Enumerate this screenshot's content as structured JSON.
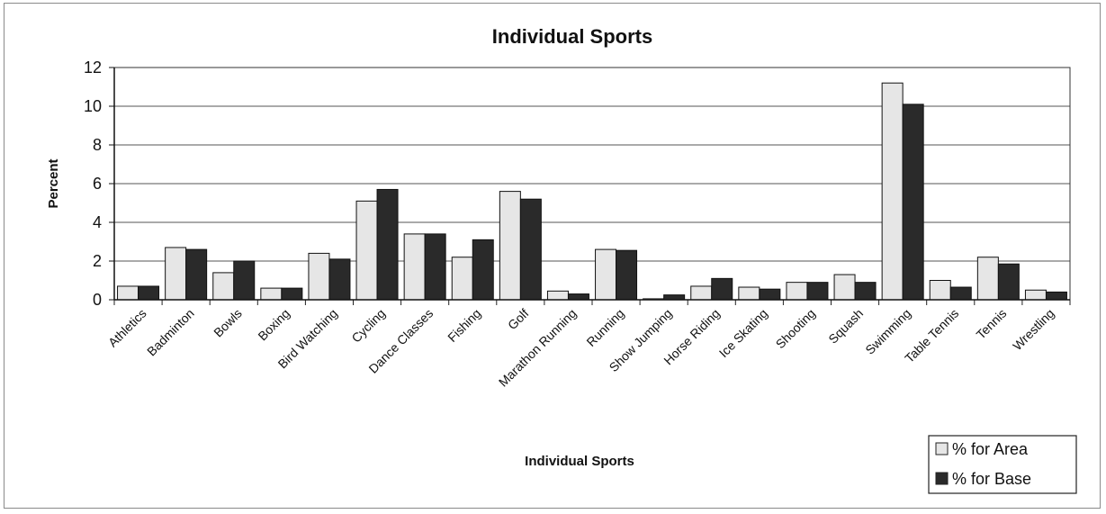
{
  "chart_data": {
    "type": "bar",
    "title": "Individual Sports",
    "xlabel": "Individual Sports",
    "ylabel": "Percent",
    "ylim": [
      0,
      12
    ],
    "yticks": [
      0,
      2,
      4,
      6,
      8,
      10,
      12
    ],
    "grid": true,
    "legend_position": "bottom-right",
    "categories": [
      "Athletics",
      "Badminton",
      "Bowls",
      "Boxing",
      "Bird Watching",
      "Cycling",
      "Dance Classes",
      "Fishing",
      "Golf",
      "Marathon Running",
      "Running",
      "Show Jumping",
      "Horse Riding",
      "Ice Skating",
      "Shooting",
      "Squash",
      "Swimming",
      "Table Tennis",
      "Tennis",
      "Wrestling"
    ],
    "series": [
      {
        "name": "% for Area",
        "color": "#e6e6e6",
        "values": [
          0.7,
          2.7,
          1.4,
          0.6,
          2.4,
          5.1,
          3.4,
          2.2,
          5.6,
          0.45,
          2.6,
          0.05,
          0.7,
          0.65,
          0.9,
          1.3,
          11.2,
          1.0,
          2.2,
          0.5
        ]
      },
      {
        "name": "% for Base",
        "color": "#2a2a2a",
        "values": [
          0.7,
          2.6,
          2.0,
          0.6,
          2.1,
          5.7,
          3.4,
          3.1,
          5.2,
          0.3,
          2.55,
          0.25,
          1.1,
          0.55,
          0.9,
          0.9,
          10.1,
          0.65,
          1.85,
          0.4
        ]
      }
    ]
  }
}
